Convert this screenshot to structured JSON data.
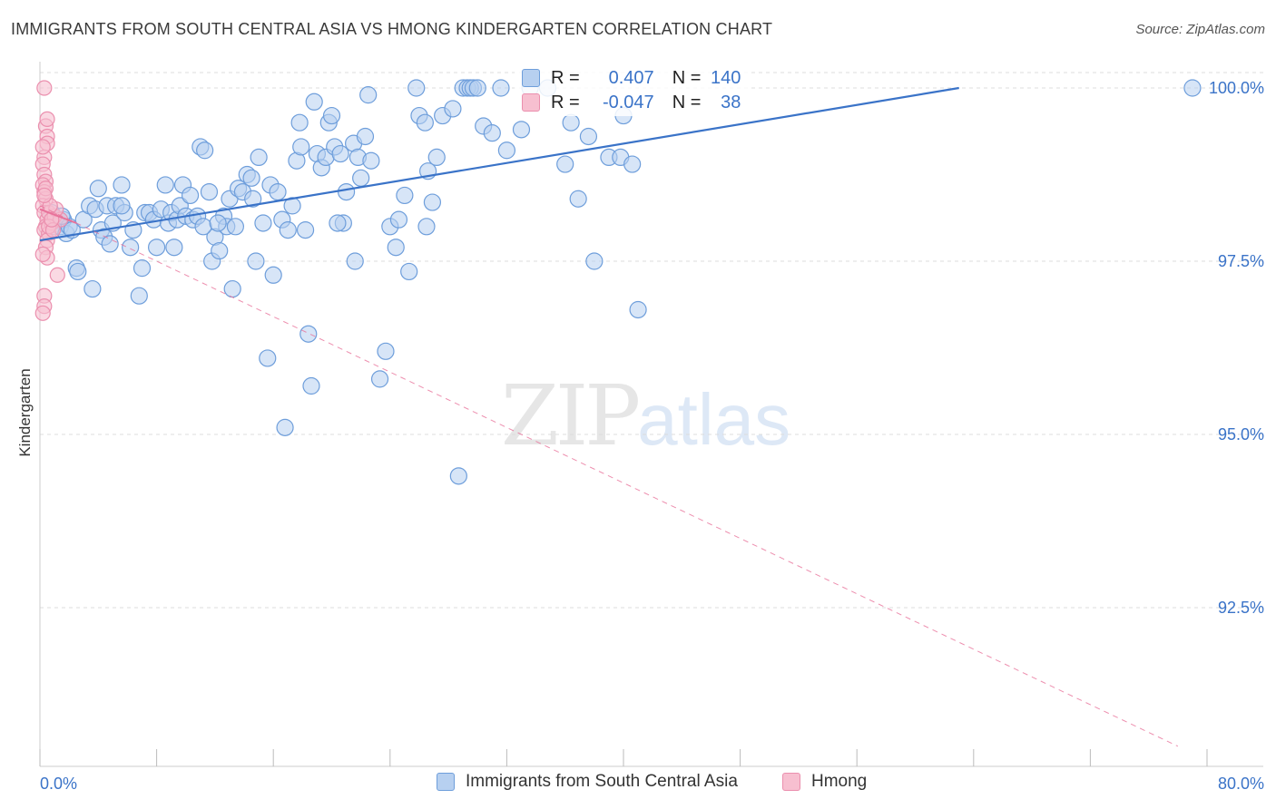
{
  "title": "IMMIGRANTS FROM SOUTH CENTRAL ASIA VS HMONG KINDERGARTEN CORRELATION CHART",
  "source": "Source: ZipAtlas.com",
  "watermark": {
    "zip": "ZIP",
    "atlas": "atlas"
  },
  "stats": {
    "r_label": "R =",
    "n_label": "N =",
    "series1": {
      "r": "0.407",
      "n": "140"
    },
    "series2": {
      "r": "-0.047",
      "n": "38"
    }
  },
  "colors": {
    "blue": "#3a73c8",
    "blue_fill": "#b7d0f0",
    "blue_stroke": "#6e9edb",
    "pink": "#e8729a",
    "pink_fill": "#f7bfd0",
    "pink_stroke": "#eb8fae",
    "grid": "#dcdcdc"
  },
  "chart_data": {
    "type": "scatter",
    "title": "IMMIGRANTS FROM SOUTH CENTRAL ASIA VS HMONG KINDERGARTEN CORRELATION CHART",
    "xlabel": "",
    "ylabel": "Kindergarten",
    "xlim": [
      0,
      80
    ],
    "ylim": [
      90.5,
      100.4
    ],
    "x_tick_labels": [
      "0.0%",
      "80.0%"
    ],
    "y_ticks": [
      92.5,
      95.0,
      97.5,
      100.0
    ],
    "y_tick_labels": [
      "92.5%",
      "95.0%",
      "97.5%",
      "100.0%"
    ],
    "legend": [
      "Immigrants from South Central Asia",
      "Hmong"
    ],
    "series": [
      {
        "name": "Immigrants from South Central Asia",
        "trend": {
          "x": [
            0,
            63
          ],
          "y": [
            97.8,
            100.0
          ]
        },
        "points": [
          [
            0.8,
            98.2
          ],
          [
            1.0,
            98.0
          ],
          [
            1.2,
            98.1
          ],
          [
            1.4,
            98.0
          ],
          [
            1.6,
            98.1
          ],
          [
            1.8,
            97.9
          ],
          [
            2.0,
            98.0
          ],
          [
            2.2,
            97.95
          ],
          [
            1.5,
            98.15
          ],
          [
            2.5,
            97.4
          ],
          [
            3.0,
            98.1
          ],
          [
            3.4,
            98.3
          ],
          [
            3.6,
            97.1
          ],
          [
            3.8,
            98.25
          ],
          [
            4.0,
            98.55
          ],
          [
            4.2,
            97.95
          ],
          [
            4.4,
            97.85
          ],
          [
            4.6,
            98.3
          ],
          [
            4.8,
            97.75
          ],
          [
            5.0,
            98.05
          ],
          [
            5.2,
            98.3
          ],
          [
            5.6,
            98.6
          ],
          [
            5.8,
            98.2
          ],
          [
            6.2,
            97.7
          ],
          [
            6.4,
            97.95
          ],
          [
            6.8,
            97.0
          ],
          [
            7.0,
            97.4
          ],
          [
            7.2,
            98.2
          ],
          [
            7.5,
            98.2
          ],
          [
            7.8,
            98.1
          ],
          [
            8.0,
            97.7
          ],
          [
            8.3,
            98.25
          ],
          [
            8.6,
            98.6
          ],
          [
            8.8,
            98.05
          ],
          [
            9.0,
            98.2
          ],
          [
            9.4,
            98.1
          ],
          [
            9.6,
            98.3
          ],
          [
            9.8,
            98.6
          ],
          [
            10.0,
            98.15
          ],
          [
            10.3,
            98.45
          ],
          [
            10.5,
            98.1
          ],
          [
            10.8,
            98.15
          ],
          [
            11.0,
            99.15
          ],
          [
            11.3,
            99.1
          ],
          [
            11.6,
            98.5
          ],
          [
            11.8,
            97.5
          ],
          [
            12.0,
            97.85
          ],
          [
            12.3,
            97.65
          ],
          [
            12.6,
            98.15
          ],
          [
            12.8,
            98.0
          ],
          [
            13.0,
            98.4
          ],
          [
            13.2,
            97.1
          ],
          [
            13.4,
            98.0
          ],
          [
            13.6,
            98.55
          ],
          [
            13.9,
            98.5
          ],
          [
            14.2,
            98.75
          ],
          [
            14.5,
            98.7
          ],
          [
            14.8,
            97.5
          ],
          [
            15.0,
            99.0
          ],
          [
            15.3,
            98.05
          ],
          [
            15.6,
            96.1
          ],
          [
            15.8,
            98.6
          ],
          [
            16.0,
            97.3
          ],
          [
            16.3,
            98.5
          ],
          [
            16.6,
            98.1
          ],
          [
            16.8,
            95.1
          ],
          [
            17.0,
            97.95
          ],
          [
            17.3,
            98.3
          ],
          [
            17.6,
            98.95
          ],
          [
            17.8,
            99.5
          ],
          [
            17.9,
            99.15
          ],
          [
            18.2,
            97.95
          ],
          [
            18.4,
            96.45
          ],
          [
            18.6,
            95.7
          ],
          [
            18.8,
            99.8
          ],
          [
            19.0,
            99.05
          ],
          [
            19.3,
            98.85
          ],
          [
            19.6,
            99.0
          ],
          [
            19.8,
            99.5
          ],
          [
            20.0,
            99.6
          ],
          [
            20.2,
            99.15
          ],
          [
            20.6,
            99.05
          ],
          [
            20.8,
            98.05
          ],
          [
            21.0,
            98.5
          ],
          [
            21.5,
            99.2
          ],
          [
            21.6,
            97.5
          ],
          [
            21.8,
            99.0
          ],
          [
            22.0,
            98.7
          ],
          [
            22.3,
            99.3
          ],
          [
            22.5,
            99.9
          ],
          [
            22.7,
            98.95
          ],
          [
            23.3,
            95.8
          ],
          [
            23.7,
            96.2
          ],
          [
            24.0,
            98.0
          ],
          [
            24.4,
            97.7
          ],
          [
            24.6,
            98.1
          ],
          [
            25.0,
            98.45
          ],
          [
            25.3,
            97.35
          ],
          [
            25.8,
            100.0
          ],
          [
            26.0,
            99.6
          ],
          [
            26.4,
            99.5
          ],
          [
            26.6,
            98.8
          ],
          [
            26.9,
            98.35
          ],
          [
            27.2,
            99.0
          ],
          [
            27.6,
            99.6
          ],
          [
            28.3,
            99.7
          ],
          [
            28.7,
            94.4
          ],
          [
            29.0,
            100.0
          ],
          [
            29.3,
            100.0
          ],
          [
            29.5,
            100.0
          ],
          [
            29.7,
            100.0
          ],
          [
            30.0,
            100.0
          ],
          [
            30.4,
            99.45
          ],
          [
            31.0,
            99.35
          ],
          [
            31.6,
            100.0
          ],
          [
            32.0,
            99.1
          ],
          [
            33.0,
            99.4
          ],
          [
            34.8,
            100.0
          ],
          [
            36.0,
            98.9
          ],
          [
            36.4,
            99.5
          ],
          [
            36.9,
            98.4
          ],
          [
            37.6,
            99.3
          ],
          [
            38.0,
            97.5
          ],
          [
            39.0,
            99.0
          ],
          [
            39.8,
            99.0
          ],
          [
            40.0,
            99.6
          ],
          [
            40.6,
            98.9
          ],
          [
            41.0,
            96.8
          ],
          [
            79.0,
            100.0
          ],
          [
            33.6,
            100.0
          ],
          [
            26.5,
            98.0
          ],
          [
            2.6,
            97.35
          ],
          [
            5.6,
            98.3
          ],
          [
            9.2,
            97.7
          ],
          [
            11.2,
            98.0
          ],
          [
            12.2,
            98.05
          ],
          [
            14.6,
            98.4
          ],
          [
            20.4,
            98.05
          ]
        ]
      },
      {
        "name": "Hmong",
        "trend": {
          "x": [
            0,
            78
          ],
          "y": [
            98.3,
            90.5
          ]
        },
        "points": [
          [
            0.3,
            100.0
          ],
          [
            0.4,
            99.45
          ],
          [
            0.5,
            99.3
          ],
          [
            0.5,
            99.2
          ],
          [
            0.3,
            99.0
          ],
          [
            0.2,
            98.9
          ],
          [
            0.3,
            98.75
          ],
          [
            0.4,
            98.65
          ],
          [
            0.2,
            98.6
          ],
          [
            0.3,
            98.5
          ],
          [
            0.4,
            98.4
          ],
          [
            0.2,
            98.3
          ],
          [
            0.3,
            98.2
          ],
          [
            0.5,
            98.1
          ],
          [
            0.4,
            98.0
          ],
          [
            0.3,
            97.95
          ],
          [
            0.6,
            97.9
          ],
          [
            0.5,
            97.8
          ],
          [
            0.4,
            97.7
          ],
          [
            0.5,
            97.55
          ],
          [
            1.2,
            97.3
          ],
          [
            0.3,
            97.0
          ],
          [
            0.3,
            96.85
          ],
          [
            0.2,
            96.75
          ],
          [
            0.8,
            98.05
          ],
          [
            0.6,
            98.2
          ],
          [
            1.0,
            98.15
          ],
          [
            1.4,
            98.1
          ],
          [
            0.2,
            99.15
          ],
          [
            0.4,
            98.55
          ],
          [
            0.6,
            98.0
          ],
          [
            0.9,
            97.95
          ],
          [
            1.1,
            98.25
          ],
          [
            0.7,
            98.3
          ],
          [
            0.2,
            97.6
          ],
          [
            0.5,
            99.55
          ],
          [
            0.3,
            98.45
          ],
          [
            0.8,
            98.1
          ]
        ]
      }
    ]
  }
}
